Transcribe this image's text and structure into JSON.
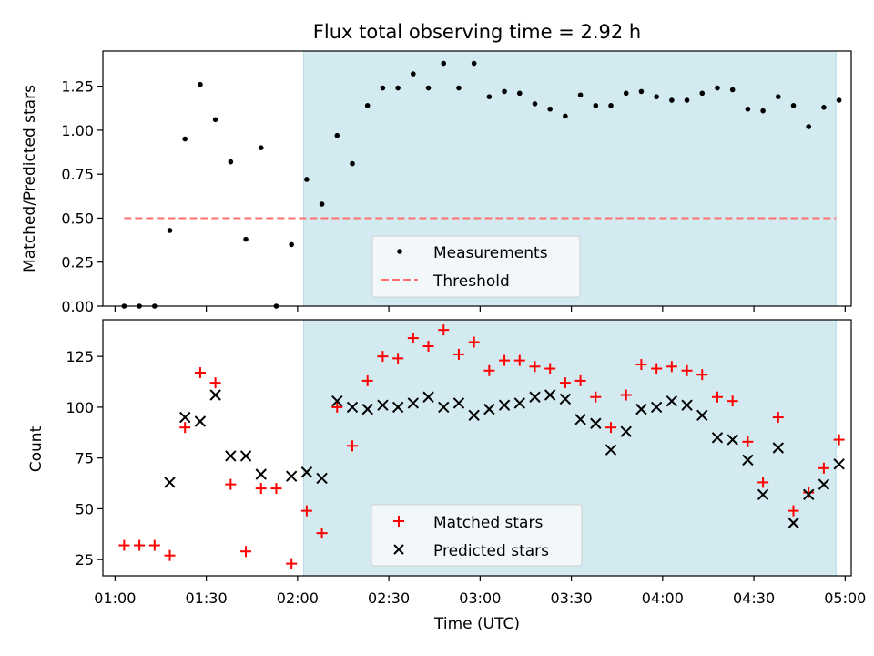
{
  "title": "Flux total observing time = 2.92 h",
  "colors": {
    "shade": "#d3eaf0",
    "shade_edge": "#b6dbe6",
    "measurement": "#000000",
    "threshold": "#ff7070",
    "matched": "#ff0000",
    "predicted": "#000000"
  },
  "chart_data": [
    {
      "type": "scatter",
      "panel": "top",
      "title": "Flux total observing time = 2.92 h",
      "ylabel": "Matched/Predicted stars",
      "xlabel": "",
      "xlim": [
        "00:56",
        "05:02"
      ],
      "ylim": [
        0,
        1.45
      ],
      "yticks": [
        0.0,
        0.25,
        0.5,
        0.75,
        1.0,
        1.25
      ],
      "ytick_labels": [
        "0.00",
        "0.25",
        "0.50",
        "0.75",
        "1.00",
        "1.25"
      ],
      "shaded_interval": [
        "02:02",
        "04:57"
      ],
      "legend": {
        "placement": "lower-center",
        "entries": [
          "Measurements",
          "Threshold"
        ]
      },
      "threshold": {
        "name": "Threshold",
        "value": 0.5,
        "x_range": [
          "01:03",
          "04:57"
        ],
        "style": "dashed"
      },
      "series": [
        {
          "name": "Measurements",
          "x": [
            "01:03",
            "01:08",
            "01:13",
            "01:18",
            "01:23",
            "01:28",
            "01:33",
            "01:38",
            "01:43",
            "01:48",
            "01:53",
            "01:58",
            "02:03",
            "02:08",
            "02:13",
            "02:18",
            "02:23",
            "02:28",
            "02:33",
            "02:38",
            "02:43",
            "02:48",
            "02:53",
            "02:58",
            "03:03",
            "03:08",
            "03:13",
            "03:18",
            "03:23",
            "03:28",
            "03:33",
            "03:38",
            "03:43",
            "03:48",
            "03:53",
            "03:58",
            "04:03",
            "04:08",
            "04:13",
            "04:18",
            "04:23",
            "04:28",
            "04:33",
            "04:38",
            "04:43",
            "04:48",
            "04:53",
            "04:58"
          ],
          "y": [
            0.0,
            0.0,
            0.0,
            0.43,
            0.95,
            1.26,
            1.06,
            0.82,
            0.38,
            0.9,
            0.0,
            0.35,
            0.72,
            0.58,
            0.97,
            0.81,
            1.14,
            1.24,
            1.24,
            1.32,
            1.24,
            1.38,
            1.24,
            1.38,
            1.19,
            1.22,
            1.21,
            1.15,
            1.12,
            1.08,
            1.2,
            1.14,
            1.14,
            1.21,
            1.22,
            1.19,
            1.17,
            1.17,
            1.21,
            1.24,
            1.23,
            1.12,
            1.11,
            1.19,
            1.14,
            1.02,
            1.13,
            1.17
          ]
        }
      ]
    },
    {
      "type": "scatter",
      "panel": "bottom",
      "ylabel": "Count",
      "xlabel": "Time (UTC)",
      "xlim": [
        "00:56",
        "05:02"
      ],
      "ylim": [
        17,
        143
      ],
      "xticks": [
        "01:00",
        "01:30",
        "02:00",
        "02:30",
        "03:00",
        "03:30",
        "04:00",
        "04:30",
        "05:00"
      ],
      "yticks": [
        25,
        50,
        75,
        100,
        125
      ],
      "shaded_interval": [
        "02:02",
        "04:57"
      ],
      "legend": {
        "placement": "lower-center",
        "entries": [
          "Matched stars",
          "Predicted stars"
        ]
      },
      "series": [
        {
          "name": "Matched stars",
          "marker": "plus",
          "x": [
            "01:03",
            "01:08",
            "01:13",
            "01:18",
            "01:23",
            "01:28",
            "01:33",
            "01:38",
            "01:43",
            "01:48",
            "01:53",
            "01:58",
            "02:03",
            "02:08",
            "02:13",
            "02:18",
            "02:23",
            "02:28",
            "02:33",
            "02:38",
            "02:43",
            "02:48",
            "02:53",
            "02:58",
            "03:03",
            "03:08",
            "03:13",
            "03:18",
            "03:23",
            "03:28",
            "03:33",
            "03:38",
            "03:43",
            "03:48",
            "03:53",
            "03:58",
            "04:03",
            "04:08",
            "04:13",
            "04:18",
            "04:23",
            "04:28",
            "04:33",
            "04:38",
            "04:43",
            "04:48",
            "04:53",
            "04:58"
          ],
          "y": [
            32,
            32,
            32,
            27,
            90,
            117,
            112,
            62,
            29,
            60,
            60,
            23,
            49,
            38,
            100,
            81,
            113,
            125,
            124,
            134,
            130,
            138,
            126,
            132,
            118,
            123,
            123,
            120,
            119,
            112,
            113,
            105,
            90,
            106,
            121,
            119,
            120,
            118,
            116,
            105,
            103,
            83,
            63,
            95,
            49,
            58,
            70,
            84
          ]
        },
        {
          "name": "Predicted stars",
          "marker": "x",
          "x": [
            "01:18",
            "01:23",
            "01:28",
            "01:33",
            "01:38",
            "01:43",
            "01:48",
            "01:58",
            "02:03",
            "02:08",
            "02:13",
            "02:18",
            "02:23",
            "02:28",
            "02:33",
            "02:38",
            "02:43",
            "02:48",
            "02:53",
            "02:58",
            "03:03",
            "03:08",
            "03:13",
            "03:18",
            "03:23",
            "03:28",
            "03:33",
            "03:38",
            "03:43",
            "03:48",
            "03:53",
            "03:58",
            "04:03",
            "04:08",
            "04:13",
            "04:18",
            "04:23",
            "04:28",
            "04:33",
            "04:38",
            "04:43",
            "04:48",
            "04:53",
            "04:58"
          ],
          "y": [
            63,
            95,
            93,
            106,
            76,
            76,
            67,
            66,
            68,
            65,
            103,
            100,
            99,
            101,
            100,
            102,
            105,
            100,
            102,
            96,
            99,
            101,
            102,
            105,
            106,
            104,
            94,
            92,
            79,
            88,
            99,
            100,
            103,
            101,
            96,
            85,
            84,
            74,
            57,
            80,
            43,
            57,
            62,
            72
          ]
        }
      ]
    }
  ]
}
